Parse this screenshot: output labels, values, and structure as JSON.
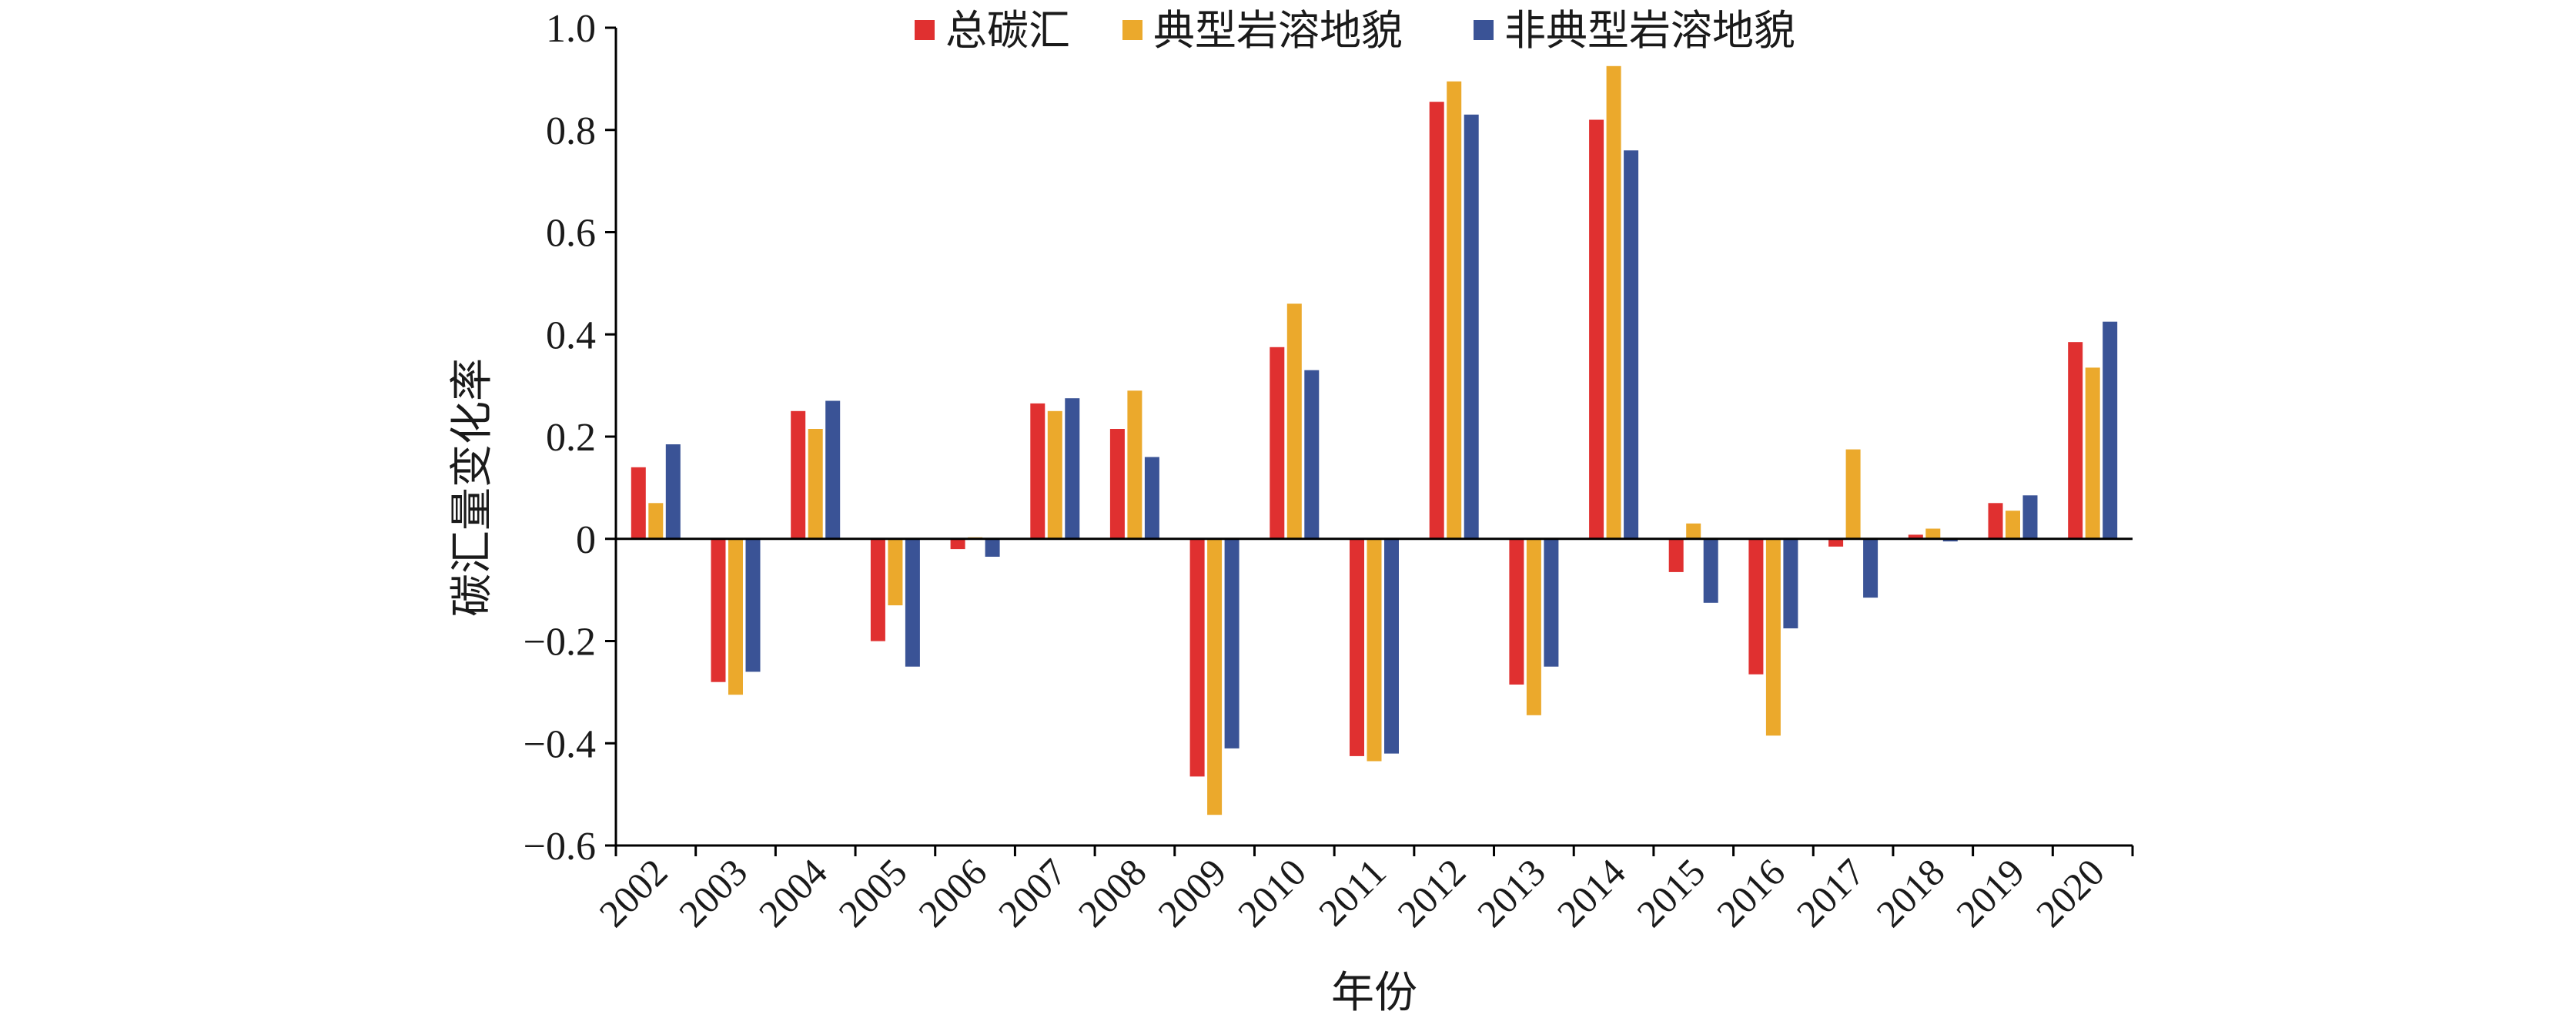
{
  "chart_data": {
    "type": "bar",
    "categories": [
      "2002",
      "2003",
      "2004",
      "2005",
      "2006",
      "2007",
      "2008",
      "2009",
      "2010",
      "2011",
      "2012",
      "2013",
      "2014",
      "2015",
      "2016",
      "2017",
      "2018",
      "2019",
      "2020"
    ],
    "series": [
      {
        "name": "总碳汇",
        "color": "#e03030",
        "values": [
          0.14,
          -0.28,
          0.25,
          -0.2,
          -0.02,
          0.265,
          0.215,
          -0.465,
          0.375,
          -0.425,
          0.855,
          -0.285,
          0.82,
          -0.065,
          -0.265,
          -0.015,
          0.008,
          0.07,
          0.385
        ]
      },
      {
        "name": "典型岩溶地貌",
        "color": "#eba92c",
        "values": [
          0.07,
          -0.305,
          0.215,
          -0.13,
          0.003,
          0.25,
          0.29,
          -0.54,
          0.46,
          -0.435,
          0.895,
          -0.345,
          0.925,
          0.03,
          -0.385,
          0.175,
          0.02,
          0.055,
          0.335
        ]
      },
      {
        "name": "非典型岩溶地貌",
        "color": "#3a5396",
        "values": [
          0.185,
          -0.26,
          0.27,
          -0.25,
          -0.035,
          0.275,
          0.16,
          -0.41,
          0.33,
          -0.42,
          0.83,
          -0.25,
          0.76,
          -0.125,
          -0.175,
          -0.115,
          -0.005,
          0.085,
          0.425
        ]
      }
    ],
    "title": "",
    "xlabel": "年份",
    "ylabel": "碳汇量变化率",
    "ylim": [
      -0.6,
      1.0
    ],
    "yticks": [
      -0.6,
      -0.4,
      -0.2,
      0,
      0.2,
      0.4,
      0.6,
      0.8,
      1.0
    ],
    "ytick_labels": [
      "−0.6",
      "−0.4",
      "−0.2",
      "0",
      "0.2",
      "0.4",
      "0.6",
      "0.8",
      "1.0"
    ],
    "grid": false,
    "legend": "top-center"
  }
}
